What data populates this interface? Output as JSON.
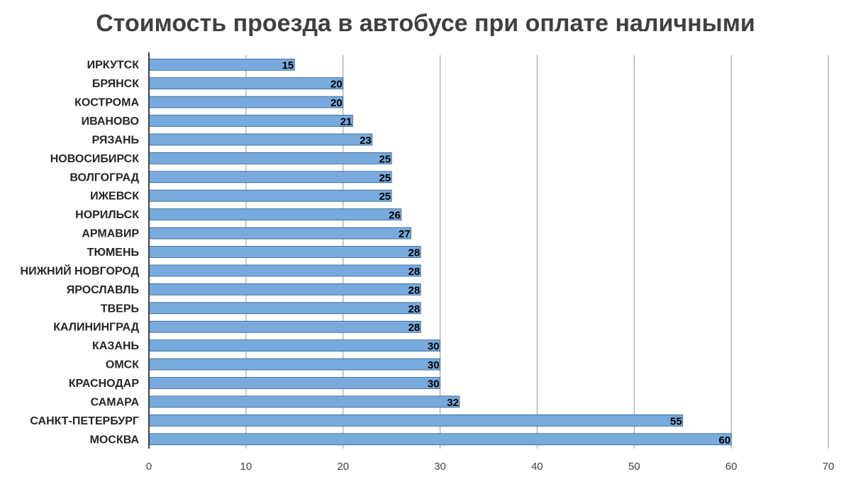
{
  "chart_data": {
    "type": "bar",
    "orientation": "horizontal",
    "title": "Стоимость проезда в автобусе при оплате наличными",
    "xlabel": "",
    "ylabel": "",
    "categories": [
      "ИРКУТСК",
      "БРЯНСК",
      "КОСТРОМА",
      "ИВАНОВО",
      "РЯЗАНЬ",
      "НОВОСИБИРСК",
      "ВОЛГОГРАД",
      "ИЖЕВСК",
      "НОРИЛЬСК",
      "АРМАВИР",
      "ТЮМЕНЬ",
      "НИЖНИЙ НОВГОРОД",
      "ЯРОСЛАВЛЬ",
      "ТВЕРЬ",
      "КАЛИНИНГРАД",
      "КАЗАНЬ",
      "ОМСК",
      "КРАСНОДАР",
      "САМАРА",
      "САНКТ-ПЕТЕРБУРГ",
      "МОСКВА"
    ],
    "values": [
      15,
      20,
      20,
      21,
      23,
      25,
      25,
      25,
      26,
      27,
      28,
      28,
      28,
      28,
      28,
      30,
      30,
      30,
      32,
      55,
      60
    ],
    "xlim": [
      0,
      70
    ],
    "xticks": [
      "0",
      "10",
      "20",
      "30",
      "40",
      "50",
      "60",
      "70"
    ],
    "grid": true,
    "legend": "none",
    "data_labels": true,
    "colors": {
      "bar_fill": "#78aadd",
      "bar_stroke": "#2f5f8f",
      "grid": "#a6a6a6",
      "axis": "#404040",
      "title": "#404040"
    }
  }
}
